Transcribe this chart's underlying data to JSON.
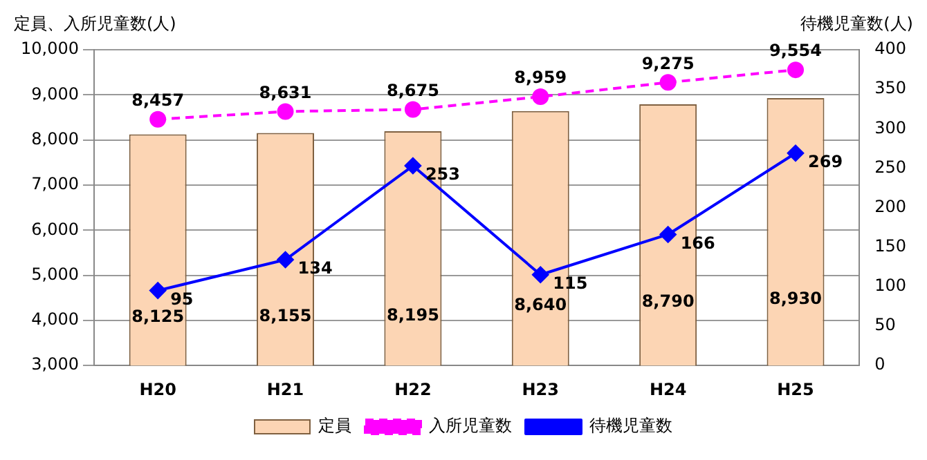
{
  "chart_data": {
    "type": "bar",
    "ylabel": "定員、入所児童数(人)",
    "y2label": "待機児童数(人)",
    "categories": [
      "H20",
      "H21",
      "H22",
      "H23",
      "H24",
      "H25"
    ],
    "series": [
      {
        "name": "定員",
        "type": "bar",
        "color": "#fcd5b4",
        "values": [
          8125,
          8155,
          8195,
          8640,
          8790,
          8930
        ],
        "value_labels": [
          "8,125",
          "8,155",
          "8,195",
          "8,640",
          "8,790",
          "8,930"
        ]
      },
      {
        "name": "入所児童数",
        "type": "line",
        "color": "#ff00ff",
        "marker": "circle",
        "line_style": "dashed",
        "values": [
          8457,
          8631,
          8675,
          8959,
          9275,
          9554
        ],
        "value_labels": [
          "8,457",
          "8,631",
          "8,675",
          "8,959",
          "9,275",
          "9,554"
        ]
      },
      {
        "name": "待機児童数",
        "type": "line",
        "axis": "y2",
        "color": "#0000ff",
        "marker": "diamond",
        "line_style": "solid",
        "values": [
          95,
          134,
          253,
          115,
          166,
          269
        ]
      }
    ],
    "ylim": [
      3000,
      10000
    ],
    "yticks": [
      {
        "value": 3000,
        "label": "3,000"
      },
      {
        "value": 4000,
        "label": "4,000"
      },
      {
        "value": 5000,
        "label": "5,000"
      },
      {
        "value": 6000,
        "label": "6,000"
      },
      {
        "value": 7000,
        "label": "7,000"
      },
      {
        "value": 8000,
        "label": "8,000"
      },
      {
        "value": 9000,
        "label": "9,000"
      },
      {
        "value": 10000,
        "label": "10,000"
      }
    ],
    "y2lim": [
      0,
      400
    ],
    "y2ticks": [
      0,
      50,
      100,
      150,
      200,
      250,
      300,
      350,
      400
    ],
    "grid": "y",
    "legend": "bottom",
    "data_labels": true
  }
}
